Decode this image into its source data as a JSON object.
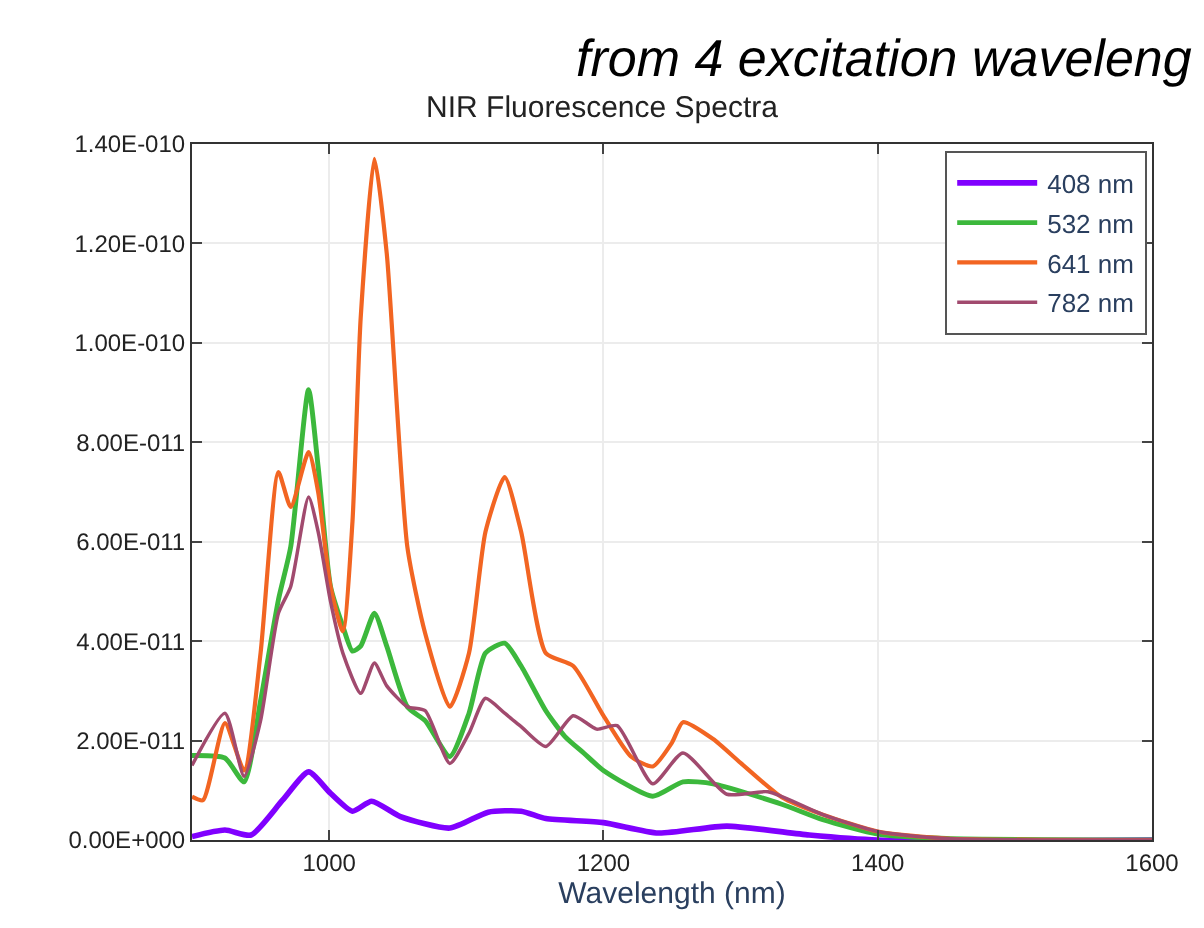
{
  "chart_data": {
    "type": "line",
    "title": "NIR Fluorescence Spectra",
    "xlabel": "Wavelength (nm)",
    "annotations": [
      "from 4 excitation waveleng"
    ],
    "xlim": [
      900,
      1600
    ],
    "xticks": [
      1000,
      1200,
      1400,
      1600
    ],
    "ylim": [
      0,
      1.4e-10
    ],
    "yticks": [
      {
        "value": 0,
        "label": "0.00E+000"
      },
      {
        "value": 2e-11,
        "label": "2.00E-011"
      },
      {
        "value": 4e-11,
        "label": "4.00E-011"
      },
      {
        "value": 6e-11,
        "label": "6.00E-011"
      },
      {
        "value": 8e-11,
        "label": "8.00E-011"
      },
      {
        "value": 1e-10,
        "label": "1.00E-010"
      },
      {
        "value": 1.2e-10,
        "label": "1.20E-010"
      },
      {
        "value": 1.4e-10,
        "label": "1.40E-010"
      }
    ],
    "grid": true,
    "legend": "top right",
    "line_style": "solid",
    "marker": "none",
    "series": [
      {
        "name": "408 nm",
        "color": "#8000ff",
        "x": [
          900,
          924,
          943,
          966,
          985,
          1001,
          1017,
          1031,
          1052,
          1088,
          1116,
          1140,
          1158,
          1200,
          1240,
          1290,
          1350,
          1400,
          1600
        ],
        "values": [
          7e-13,
          2e-12,
          1e-12,
          8e-12,
          1.37e-11,
          9.4e-12,
          5.8e-12,
          7.8e-12,
          4.7e-12,
          2.4e-12,
          5.6e-12,
          5.8e-12,
          4.3e-12,
          3.5e-12,
          1.4e-12,
          2.8e-12,
          1e-12,
          0,
          0
        ]
      },
      {
        "name": "532 nm",
        "color": "#3cb83c",
        "x": [
          900,
          924,
          938,
          950,
          963,
          972,
          985,
          992,
          1001,
          1010,
          1017,
          1023,
          1033,
          1042,
          1057,
          1070,
          1088,
          1102,
          1114,
          1128,
          1140,
          1158,
          1172,
          1186,
          1200,
          1236,
          1258,
          1280,
          1330,
          1360,
          1400,
          1450,
          1600
        ],
        "values": [
          1.7e-11,
          1.65e-11,
          1.17e-11,
          2.8e-11,
          4.83e-11,
          5.9e-11,
          9.06e-11,
          7.5e-11,
          5.1e-11,
          4.3e-11,
          3.8e-11,
          3.9e-11,
          4.56e-11,
          3.9e-11,
          2.68e-11,
          2.4e-11,
          1.68e-11,
          2.55e-11,
          3.76e-11,
          3.96e-11,
          3.5e-11,
          2.6e-11,
          2.08e-11,
          1.74e-11,
          1.4e-11,
          8.8e-12,
          1.17e-11,
          1.13e-11,
          7.2e-12,
          4.1e-12,
          1.2e-12,
          3e-13,
          0
        ]
      },
      {
        "name": "641 nm",
        "color": "#f26522",
        "x": [
          900,
          908,
          924,
          938,
          950,
          963,
          972,
          985,
          992,
          1001,
          1010,
          1017,
          1023,
          1033,
          1042,
          1057,
          1070,
          1088,
          1102,
          1114,
          1128,
          1140,
          1158,
          1178,
          1200,
          1220,
          1236,
          1250,
          1258,
          1280,
          1300,
          1330,
          1360,
          1400,
          1450,
          1600
        ],
        "values": [
          8.7e-12,
          8e-12,
          2.35e-11,
          1.4e-11,
          3.76e-11,
          7.4e-11,
          6.7e-11,
          7.8e-11,
          7e-11,
          5.1e-11,
          4.2e-11,
          6.4e-11,
          1.05e-10,
          1.37e-10,
          1.18e-10,
          5.9e-11,
          4.16e-11,
          2.68e-11,
          3.76e-11,
          6.2e-11,
          7.3e-11,
          6.2e-11,
          3.76e-11,
          3.5e-11,
          2.5e-11,
          1.68e-11,
          1.48e-11,
          1.96e-11,
          2.37e-11,
          2.03e-11,
          1.55e-11,
          8.6e-12,
          5.1e-12,
          1.7e-12,
          3e-13,
          0
        ]
      },
      {
        "name": "782 nm",
        "color": "#a14a6e",
        "x": [
          900,
          924,
          938,
          950,
          963,
          972,
          985,
          992,
          1001,
          1010,
          1023,
          1033,
          1042,
          1057,
          1070,
          1088,
          1102,
          1114,
          1128,
          1140,
          1158,
          1178,
          1195,
          1210,
          1236,
          1258,
          1290,
          1320,
          1360,
          1400,
          1450,
          1600
        ],
        "values": [
          1.5e-11,
          2.55e-11,
          1.28e-11,
          2.4e-11,
          4.56e-11,
          5.1e-11,
          6.9e-11,
          6.2e-11,
          4.8e-11,
          3.76e-11,
          2.95e-11,
          3.56e-11,
          3.1e-11,
          2.68e-11,
          2.6e-11,
          1.54e-11,
          2.15e-11,
          2.85e-11,
          2.55e-11,
          2.28e-11,
          1.88e-11,
          2.5e-11,
          2.23e-11,
          2.3e-11,
          1.13e-11,
          1.75e-11,
          9.2e-12,
          9.7e-12,
          5.1e-12,
          1.7e-12,
          3e-13,
          0
        ]
      }
    ]
  }
}
